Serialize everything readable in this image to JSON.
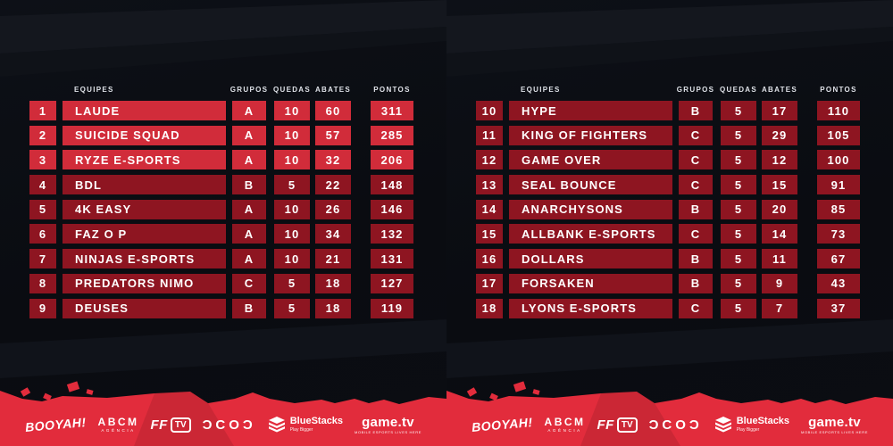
{
  "chart_data": {
    "type": "table",
    "title": "",
    "columns": [
      "EQUIPES",
      "GRUPOS",
      "QUEDAS",
      "ABATES",
      "PONTOS"
    ],
    "panels": [
      {
        "rows": [
          {
            "rank": "1",
            "team": "LAUDE",
            "group": "A",
            "quedas": 10,
            "abates": 60,
            "pontos": 311,
            "highlight": true
          },
          {
            "rank": "2",
            "team": "SUICIDE SQUAD",
            "group": "A",
            "quedas": 10,
            "abates": 57,
            "pontos": 285,
            "highlight": true
          },
          {
            "rank": "3",
            "team": "RYZE E-SPORTS",
            "group": "A",
            "quedas": 10,
            "abates": 32,
            "pontos": 206,
            "highlight": true
          },
          {
            "rank": "4",
            "team": "BDL",
            "group": "B",
            "quedas": 5,
            "abates": 22,
            "pontos": 148,
            "highlight": false
          },
          {
            "rank": "5",
            "team": "4K EASY",
            "group": "A",
            "quedas": 10,
            "abates": 26,
            "pontos": 146,
            "highlight": false
          },
          {
            "rank": "6",
            "team": "FAZ O P",
            "group": "A",
            "quedas": 10,
            "abates": 34,
            "pontos": 132,
            "highlight": false
          },
          {
            "rank": "7",
            "team": "NINJAS E-SPORTS",
            "group": "A",
            "quedas": 10,
            "abates": 21,
            "pontos": 131,
            "highlight": false
          },
          {
            "rank": "8",
            "team": "PREDATORS NIMO",
            "group": "C",
            "quedas": 5,
            "abates": 18,
            "pontos": 127,
            "highlight": false
          },
          {
            "rank": "9",
            "team": "DEUSES",
            "group": "B",
            "quedas": 5,
            "abates": 18,
            "pontos": 119,
            "highlight": false
          }
        ]
      },
      {
        "rows": [
          {
            "rank": "10",
            "team": "HYPE",
            "group": "B",
            "quedas": 5,
            "abates": 17,
            "pontos": 110,
            "highlight": false
          },
          {
            "rank": "11",
            "team": "KING OF FIGHTERS",
            "group": "C",
            "quedas": 5,
            "abates": 29,
            "pontos": 105,
            "highlight": false
          },
          {
            "rank": "12",
            "team": "GAME OVER",
            "group": "C",
            "quedas": 5,
            "abates": 12,
            "pontos": 100,
            "highlight": false
          },
          {
            "rank": "13",
            "team": "SEAL BOUNCE",
            "group": "C",
            "quedas": 5,
            "abates": 15,
            "pontos": 91,
            "highlight": false
          },
          {
            "rank": "14",
            "team": "ANARCHYSONS",
            "group": "B",
            "quedas": 5,
            "abates": 20,
            "pontos": 85,
            "highlight": false
          },
          {
            "rank": "15",
            "team": "ALLBANK E-SPORTS",
            "group": "C",
            "quedas": 5,
            "abates": 14,
            "pontos": 73,
            "highlight": false
          },
          {
            "rank": "16",
            "team": "DOLLARS",
            "group": "B",
            "quedas": 5,
            "abates": 11,
            "pontos": 67,
            "highlight": false
          },
          {
            "rank": "17",
            "team": "FORSAKEN",
            "group": "B",
            "quedas": 5,
            "abates": 9,
            "pontos": 43,
            "highlight": false
          },
          {
            "rank": "18",
            "team": "LYONS E-SPORTS",
            "group": "C",
            "quedas": 5,
            "abates": 7,
            "pontos": 37,
            "highlight": false
          }
        ]
      }
    ]
  },
  "sponsors": [
    {
      "name": "booyah",
      "label": "BOOYAH!"
    },
    {
      "name": "abcm",
      "label": "ABCM",
      "sub": "AGÊNCIA"
    },
    {
      "name": "fftv",
      "label": "FF",
      "badge": "TV"
    },
    {
      "name": "dcod",
      "label": "DCOD",
      "display": "ƆCOƆ"
    },
    {
      "name": "bluestacks",
      "label": "BlueStacks",
      "sub": "Play Bigger",
      "icon": "layer-stack-icon"
    },
    {
      "name": "gametv",
      "label": "game.tv",
      "sub": "MOBILE ESPORTS LIVES HERE"
    }
  ],
  "colors": {
    "row_highlight": "#d12c3a",
    "row_default": "#8e1521",
    "footer": "#e22c3c",
    "background": "#0b0e13",
    "text": "#ffffff"
  }
}
